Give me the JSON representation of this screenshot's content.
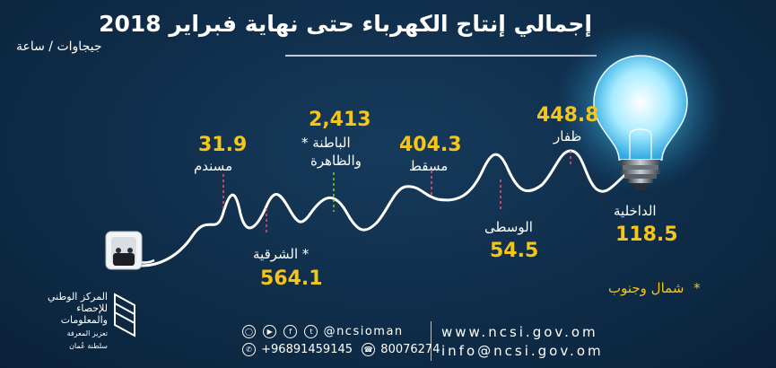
{
  "title": "إجمالي إنتاج الكهرباء حتى نهاية فبراير 2018",
  "unit": "جيجاوات / ساعة",
  "chart_data": {
    "type": "other",
    "categories": [
      "مسندم",
      "الشرقية",
      "الباطنة والظاهرة",
      "مسقط",
      "الوسطى",
      "ظفار",
      "الداخلية"
    ],
    "values": [
      31.9,
      564.1,
      2413,
      404.3,
      54.5,
      448.8,
      118.5
    ],
    "value_labels": [
      "31.9",
      "564.1",
      "2,413",
      "404.3",
      "54.5",
      "448.8",
      "118.5"
    ]
  },
  "regions": {
    "musandam": {
      "name": "مسندم",
      "value": "31.9"
    },
    "sharqiya": {
      "name": "الشرقية",
      "value": "564.1",
      "mark": "*"
    },
    "batinah": {
      "name_line1": "الباطنة",
      "name_line2": "والظاهرة",
      "value": "2,413",
      "mark": "*"
    },
    "muscat": {
      "name": "مسقط",
      "value": "404.3"
    },
    "wusta": {
      "name": "الوسطى",
      "value": "54.5"
    },
    "dhofar": {
      "name": "ظفار",
      "value": "448.8"
    },
    "dakhiliya": {
      "name": "الداخلية",
      "value": "118.5"
    }
  },
  "note": {
    "mark": "*",
    "text": "شمال وجنوب"
  },
  "footer": {
    "social_handle": "@ncsioman",
    "phone": "+96891459145",
    "phone2": "80076274",
    "website": "www.ncsi.gov.om",
    "email": "info@ncsi.gov.om"
  },
  "logo": {
    "line1": "المركز الوطني",
    "line2": "للإحصاء",
    "line3": "والمعلومات",
    "line4": "تعزيز المعرفة",
    "line5": "سلطنة عُمان"
  },
  "colors": {
    "background": "#0d2a44",
    "accent": "#f5c518",
    "line": "#ffffff",
    "dashes": [
      "#e05a7a",
      "#e05a7a",
      "#8ec63f",
      "#e05a7a",
      "#e05a7a",
      "#e05a7a"
    ]
  },
  "icons": [
    "plug-icon",
    "light-bulb-icon",
    "instagram-icon",
    "youtube-icon",
    "facebook-icon",
    "twitter-icon",
    "phone-icon",
    "whatsapp-icon"
  ]
}
